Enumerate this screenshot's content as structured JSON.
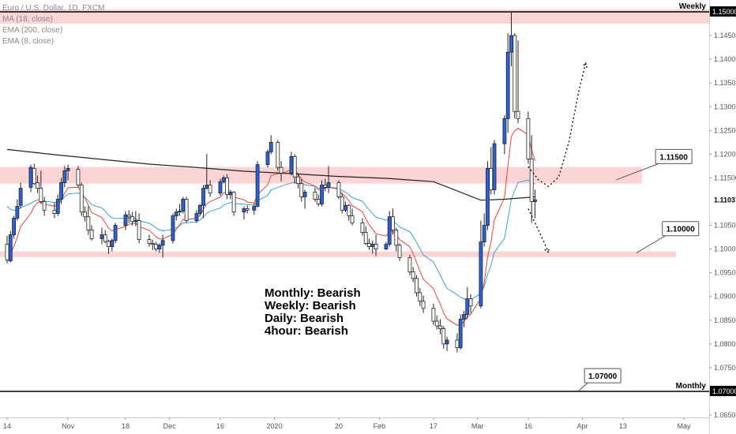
{
  "legend": {
    "symbol": "Euro / U.S. Dollar, 1D, FXCM",
    "ma": "MA (18, close)",
    "ema200": "EMA (200, close)",
    "ema8": "EMA (8, close)"
  },
  "colors": {
    "ema8": "#e8453c",
    "ema18": "#3d9fe0",
    "ema200": "#222222",
    "zone": "#fbd5d5",
    "bull": "#2962d9",
    "bear": "#ffffff"
  },
  "notes": [
    "Monthly: Bearish",
    "Weekly: Bearish",
    "Daily: Bearish",
    "4hour: Bearish"
  ],
  "chart_data": {
    "type": "candlestick",
    "ylim": [
      1.0645,
      1.1525
    ],
    "x_dates": [
      "2019-10-14",
      "2020-05-01"
    ],
    "x_ticks": [
      {
        "label": "14",
        "date": "2019-10-14"
      },
      {
        "label": "Nov",
        "date": "2019-11-01"
      },
      {
        "label": "18",
        "date": "2019-11-18"
      },
      {
        "label": "Dec",
        "date": "2019-12-01"
      },
      {
        "label": "16",
        "date": "2019-12-16"
      },
      {
        "label": "2020",
        "date": "2020-01-01"
      },
      {
        "label": "20",
        "date": "2020-01-20"
      },
      {
        "label": "Feb",
        "date": "2020-02-01"
      },
      {
        "label": "17",
        "date": "2020-02-17"
      },
      {
        "label": "Mar",
        "date": "2020-03-01"
      },
      {
        "label": "16",
        "date": "2020-03-16"
      },
      {
        "label": "Apr",
        "date": "2020-04-01"
      },
      {
        "label": "13",
        "date": "2020-04-13"
      },
      {
        "label": "May",
        "date": "2020-05-01"
      }
    ],
    "y_ticks": [
      "1.15000",
      "1.14500",
      "1.14000",
      "1.13500",
      "1.13000",
      "1.12500",
      "1.12000",
      "1.11500",
      "1.10500",
      "1.10000",
      "1.09500",
      "1.09000",
      "1.08500",
      "1.08000",
      "1.07500",
      "1.07000",
      "1.06500"
    ],
    "current_price": {
      "value": 1.11037,
      "label": "1.11037"
    },
    "zones": [
      {
        "from": 1.1475,
        "to": 1.1505
      },
      {
        "from": 1.1138,
        "to": 1.1173
      },
      {
        "from": 1.0983,
        "to": 1.0995
      }
    ],
    "lines": [
      {
        "value": 1.15,
        "label": "Weekly",
        "axis_label": "1.15000"
      },
      {
        "value": 1.07,
        "label": "Monthly",
        "axis_label": "1.07000"
      }
    ],
    "callouts": [
      {
        "text": "1.11500",
        "date": "2020-04-28",
        "price": 1.1195,
        "pointer_date": "2020-04-11",
        "pointer_price": 1.1146
      },
      {
        "text": "1.10000",
        "date": "2020-04-30",
        "price": 1.1043,
        "pointer_date": "2020-04-17",
        "pointer_price": 1.0992
      },
      {
        "text": "1.07000",
        "date": "2020-04-07",
        "price": 1.0733,
        "pointer_date": "2020-03-31",
        "pointer_price": 1.0702
      }
    ],
    "projections": [
      [
        [
          "2020-03-16",
          1.1174
        ],
        [
          "2020-03-19",
          1.1146
        ],
        [
          "2020-03-22",
          1.1132
        ],
        [
          "2020-03-25",
          1.1152
        ],
        [
          "2020-03-28",
          1.1225
        ],
        [
          "2020-03-31",
          1.1335
        ],
        [
          "2020-04-02",
          1.1392
        ]
      ],
      [
        [
          "2020-03-16",
          1.1085
        ],
        [
          "2020-03-18",
          1.1055
        ],
        [
          "2020-03-20",
          1.1025
        ],
        [
          "2020-03-22",
          1.0993
        ]
      ]
    ],
    "series_ohlc": [
      [
        "2019-10-14",
        1.101,
        1.1028,
        1.097,
        1.0977
      ],
      [
        "2019-10-15",
        1.0975,
        1.1038,
        1.0972,
        1.103
      ],
      [
        "2019-10-16",
        1.103,
        1.107,
        1.1022,
        1.1065
      ],
      [
        "2019-10-17",
        1.1065,
        1.1105,
        1.106,
        1.109
      ],
      [
        "2019-10-18",
        1.1092,
        1.114,
        1.1085,
        1.1128
      ],
      [
        "2019-10-21",
        1.113,
        1.1178,
        1.112,
        1.1172
      ],
      [
        "2019-10-22",
        1.117,
        1.118,
        1.1135,
        1.1138
      ],
      [
        "2019-10-23",
        1.114,
        1.1155,
        1.1118,
        1.1128
      ],
      [
        "2019-10-24",
        1.1128,
        1.1165,
        1.1095,
        1.11
      ],
      [
        "2019-10-25",
        1.11,
        1.111,
        1.107,
        1.1082
      ],
      [
        "2019-10-28",
        1.1082,
        1.1098,
        1.1065,
        1.1075
      ],
      [
        "2019-10-29",
        1.1075,
        1.1115,
        1.107,
        1.1105
      ],
      [
        "2019-10-30",
        1.1105,
        1.115,
        1.1095,
        1.114
      ],
      [
        "2019-10-31",
        1.114,
        1.1175,
        1.113,
        1.1165
      ],
      [
        "2019-11-01",
        1.1165,
        1.1178,
        1.1145,
        1.117
      ],
      [
        "2019-11-04",
        1.1168,
        1.1175,
        1.113,
        1.1135
      ],
      [
        "2019-11-05",
        1.1135,
        1.114,
        1.107,
        1.1078
      ],
      [
        "2019-11-06",
        1.1078,
        1.109,
        1.1058,
        1.1068
      ],
      [
        "2019-11-07",
        1.1068,
        1.109,
        1.103,
        1.104
      ],
      [
        "2019-11-08",
        1.104,
        1.105,
        1.1018,
        1.1022
      ],
      [
        "2019-11-11",
        1.1022,
        1.1045,
        1.101,
        1.103
      ],
      [
        "2019-11-12",
        1.103,
        1.104,
        1.1012,
        1.1016
      ],
      [
        "2019-11-13",
        1.1016,
        1.102,
        1.099,
        1.1005
      ],
      [
        "2019-11-14",
        1.1005,
        1.1022,
        1.0995,
        1.1018
      ],
      [
        "2019-11-15",
        1.1018,
        1.1055,
        1.1012,
        1.105
      ],
      [
        "2019-11-18",
        1.105,
        1.108,
        1.104,
        1.1072
      ],
      [
        "2019-11-19",
        1.1072,
        1.1082,
        1.1055,
        1.1068
      ],
      [
        "2019-11-20",
        1.1068,
        1.1078,
        1.105,
        1.1058
      ],
      [
        "2019-11-21",
        1.1058,
        1.108,
        1.1048,
        1.106
      ],
      [
        "2019-11-22",
        1.106,
        1.1075,
        1.1012,
        1.102
      ],
      [
        "2019-11-25",
        1.102,
        1.103,
        1.1005,
        1.1012
      ],
      [
        "2019-11-26",
        1.1012,
        1.102,
        1.0998,
        1.101
      ],
      [
        "2019-11-27",
        1.101,
        1.1015,
        1.0995,
        1.1
      ],
      [
        "2019-11-28",
        1.1,
        1.1012,
        1.0992,
        1.1008
      ],
      [
        "2019-11-29",
        1.1008,
        1.103,
        1.0982,
        1.1018
      ],
      [
        "2019-12-02",
        1.1018,
        1.1075,
        1.1012,
        1.107
      ],
      [
        "2019-12-03",
        1.107,
        1.1085,
        1.106,
        1.1078
      ],
      [
        "2019-12-04",
        1.1078,
        1.1095,
        1.107,
        1.108
      ],
      [
        "2019-12-05",
        1.108,
        1.111,
        1.1075,
        1.1105
      ],
      [
        "2019-12-06",
        1.1105,
        1.111,
        1.1055,
        1.106
      ],
      [
        "2019-12-09",
        1.106,
        1.1082,
        1.1055,
        1.1075
      ],
      [
        "2019-12-10",
        1.1075,
        1.1095,
        1.107,
        1.1092
      ],
      [
        "2019-12-11",
        1.1092,
        1.1135,
        1.1065,
        1.1128
      ],
      [
        "2019-12-12",
        1.1128,
        1.12,
        1.1125,
        1.1135
      ],
      [
        "2019-12-13",
        1.1135,
        1.1145,
        1.111,
        1.1118
      ],
      [
        "2019-12-16",
        1.1118,
        1.1148,
        1.1112,
        1.1142
      ],
      [
        "2019-12-17",
        1.1142,
        1.1155,
        1.1138,
        1.115
      ],
      [
        "2019-12-18",
        1.115,
        1.1158,
        1.1105,
        1.1115
      ],
      [
        "2019-12-19",
        1.1115,
        1.1125,
        1.1105,
        1.112
      ],
      [
        "2019-12-20",
        1.112,
        1.1122,
        1.107,
        1.1078
      ],
      [
        "2019-12-23",
        1.1078,
        1.109,
        1.1062,
        1.1085
      ],
      [
        "2019-12-24",
        1.1085,
        1.1092,
        1.1075,
        1.1082
      ],
      [
        "2019-12-26",
        1.1082,
        1.1095,
        1.1072,
        1.109
      ],
      [
        "2019-12-27",
        1.109,
        1.1185,
        1.1088,
        1.1178
      ],
      [
        "2019-12-30",
        1.1178,
        1.121,
        1.1172,
        1.1205
      ],
      [
        "2019-12-31",
        1.1205,
        1.124,
        1.12,
        1.1225
      ],
      [
        "2020-01-02",
        1.1225,
        1.123,
        1.1165,
        1.1172
      ],
      [
        "2020-01-03",
        1.1172,
        1.1185,
        1.1142,
        1.116
      ],
      [
        "2020-01-06",
        1.116,
        1.1205,
        1.1155,
        1.1195
      ],
      [
        "2020-01-07",
        1.1195,
        1.12,
        1.1138,
        1.1152
      ],
      [
        "2020-01-08",
        1.1152,
        1.116,
        1.1128,
        1.1138
      ],
      [
        "2020-01-09",
        1.1138,
        1.1148,
        1.11,
        1.111
      ],
      [
        "2020-01-10",
        1.111,
        1.1125,
        1.1085,
        1.112
      ],
      [
        "2020-01-13",
        1.112,
        1.113,
        1.11,
        1.1105
      ],
      [
        "2020-01-14",
        1.1105,
        1.1115,
        1.109,
        1.1095
      ],
      [
        "2020-01-15",
        1.1095,
        1.1145,
        1.109,
        1.1135
      ],
      [
        "2020-01-16",
        1.1135,
        1.1148,
        1.1122,
        1.113
      ],
      [
        "2020-01-17",
        1.113,
        1.1175,
        1.1118,
        1.114
      ],
      [
        "2020-01-20",
        1.114,
        1.1145,
        1.1105,
        1.111
      ],
      [
        "2020-01-21",
        1.111,
        1.1118,
        1.1075,
        1.1082
      ],
      [
        "2020-01-22",
        1.1082,
        1.11,
        1.1078,
        1.1092
      ],
      [
        "2020-01-23",
        1.1092,
        1.1095,
        1.106,
        1.107
      ],
      [
        "2020-01-24",
        1.107,
        1.1085,
        1.105,
        1.1055
      ],
      [
        "2020-01-27",
        1.1055,
        1.1065,
        1.1028,
        1.1035
      ],
      [
        "2020-01-28",
        1.1035,
        1.1048,
        1.1008,
        1.1012
      ],
      [
        "2020-01-29",
        1.1012,
        1.1022,
        1.0998,
        1.1005
      ],
      [
        "2020-01-30",
        1.1005,
        1.1018,
        1.099,
        1.101
      ],
      [
        "2020-01-31",
        1.101,
        1.103,
        1.0985,
        1.1
      ],
      [
        "2020-02-03",
        1.1,
        1.1015,
        1.0998,
        1.101
      ],
      [
        "2020-02-04",
        1.101,
        1.108,
        1.1005,
        1.1068
      ],
      [
        "2020-02-05",
        1.1068,
        1.1085,
        1.103,
        1.104
      ],
      [
        "2020-02-06",
        1.104,
        1.1045,
        1.0995,
        1.1008
      ],
      [
        "2020-02-07",
        1.1008,
        1.1012,
        1.0975,
        1.0982
      ],
      [
        "2020-02-10",
        1.0982,
        1.0988,
        1.0945,
        1.0952
      ],
      [
        "2020-02-11",
        1.0952,
        1.0962,
        1.093,
        1.0938
      ],
      [
        "2020-02-12",
        1.0938,
        1.0945,
        1.09,
        1.0908
      ],
      [
        "2020-02-13",
        1.0908,
        1.0918,
        1.088,
        1.089
      ],
      [
        "2020-02-14",
        1.089,
        1.0902,
        1.0865,
        1.0875
      ],
      [
        "2020-02-17",
        1.0875,
        1.0885,
        1.084,
        1.0848
      ],
      [
        "2020-02-18",
        1.0848,
        1.086,
        1.083,
        1.0838
      ],
      [
        "2020-02-19",
        1.0838,
        1.0852,
        1.082,
        1.0832
      ],
      [
        "2020-02-20",
        1.0832,
        1.0838,
        1.079,
        1.08
      ],
      [
        "2020-02-21",
        1.08,
        1.0815,
        1.0785,
        1.0808
      ],
      [
        "2020-02-24",
        1.0808,
        1.0822,
        1.0782,
        1.0792
      ],
      [
        "2020-02-25",
        1.0792,
        1.0862,
        1.0788,
        1.0852
      ],
      [
        "2020-02-26",
        1.0852,
        1.087,
        1.0835,
        1.0862
      ],
      [
        "2020-02-27",
        1.0862,
        1.092,
        1.0852,
        1.0895
      ],
      [
        "2020-02-28",
        1.0895,
        1.0905,
        1.0865,
        1.088
      ],
      [
        "2020-03-02",
        1.088,
        1.106,
        1.0875,
        1.1015
      ],
      [
        "2020-03-03",
        1.1015,
        1.1075,
        1.1005,
        1.105
      ],
      [
        "2020-03-04",
        1.105,
        1.1185,
        1.104,
        1.117
      ],
      [
        "2020-03-05",
        1.117,
        1.1215,
        1.1115,
        1.1125
      ],
      [
        "2020-03-06",
        1.1125,
        1.123,
        1.1115,
        1.1222
      ],
      [
        "2020-03-09",
        1.1222,
        1.1282,
        1.12,
        1.1275
      ],
      [
        "2020-03-10",
        1.1275,
        1.1455,
        1.1245,
        1.1415
      ],
      [
        "2020-03-11",
        1.1415,
        1.15,
        1.1385,
        1.145
      ],
      [
        "2020-03-12",
        1.145,
        1.1455,
        1.1275,
        1.129
      ],
      [
        "2020-03-13",
        1.129,
        1.144,
        1.1265,
        1.1275
      ],
      [
        "2020-03-16",
        1.1275,
        1.129,
        1.118,
        1.119
      ],
      [
        "2020-03-17",
        1.119,
        1.124,
        1.1055,
        1.11
      ],
      [
        "2020-03-18",
        1.11,
        1.1125,
        1.1065,
        1.1104
      ]
    ],
    "ema200_points": [
      [
        "2019-10-14",
        1.121
      ],
      [
        "2019-10-28",
        1.1199
      ],
      [
        "2019-11-11",
        1.1189
      ],
      [
        "2019-11-25",
        1.1179
      ],
      [
        "2019-12-09",
        1.1172
      ],
      [
        "2019-12-23",
        1.1164
      ],
      [
        "2020-01-06",
        1.1159
      ],
      [
        "2020-01-20",
        1.1153
      ],
      [
        "2020-02-03",
        1.1149
      ],
      [
        "2020-02-17",
        1.1142
      ],
      [
        "2020-03-02",
        1.1103
      ],
      [
        "2020-03-09",
        1.1105
      ],
      [
        "2020-03-18",
        1.111
      ]
    ]
  }
}
